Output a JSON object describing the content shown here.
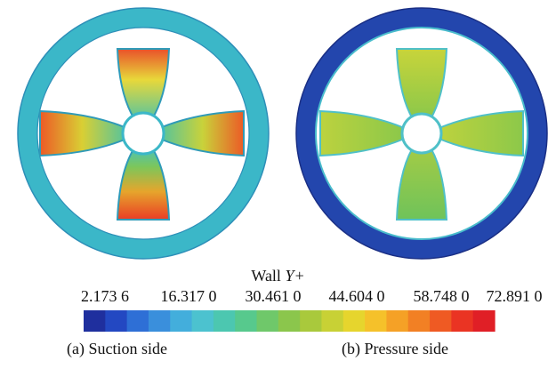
{
  "legend": {
    "title": "Wall ",
    "title_var": "Y+",
    "ticks": [
      "2.173 6",
      "16.317 0",
      "30.461 0",
      "44.604 0",
      "58.748 0",
      "72.891 0"
    ],
    "colors": [
      "#1f2f9e",
      "#2348c2",
      "#2e6fd6",
      "#3a8fdc",
      "#43aedc",
      "#4cc2cf",
      "#4cc7b0",
      "#57c98d",
      "#6fc86a",
      "#8bc64c",
      "#a9c93c",
      "#c8d135",
      "#e6d52d",
      "#f5c12a",
      "#f5a126",
      "#f28024",
      "#ef5a23",
      "#ea3423",
      "#e01f26"
    ]
  },
  "captions": {
    "a": "(a) Suction side",
    "b": "(b) Pressure side"
  }
}
